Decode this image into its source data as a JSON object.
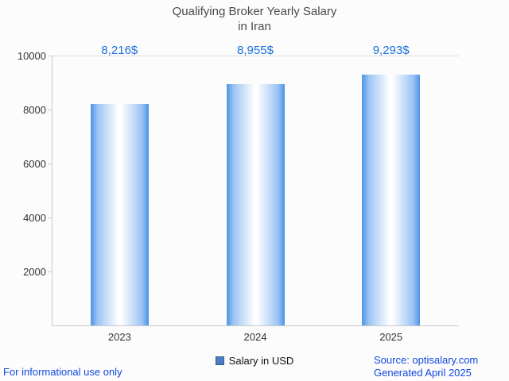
{
  "title_line1": "Qualifying Broker Yearly Salary",
  "title_line2": "in Iran",
  "legend": {
    "label": "Salary in USD"
  },
  "footer": {
    "disclaimer": "For informational use only",
    "source": "Source: optisalary.com",
    "generated": "Generated April 2025"
  },
  "colors": {
    "value_label_blue": "#1a6fdf",
    "footer_blue": "#1148e0",
    "bar_edge_blue": "#4e93e6",
    "bar_center": "#ffffff",
    "legend_swatch": "#4d7ec4",
    "axis_gray": "#c9c9c9",
    "title_gray": "#4a4a4a",
    "background": "#fcfcfc"
  },
  "chart_data": {
    "type": "bar",
    "title": "Qualifying Broker Yearly Salary in Iran",
    "categories": [
      "2023",
      "2024",
      "2025"
    ],
    "values": [
      8216,
      8955,
      9293
    ],
    "value_labels": [
      "8,216$",
      "8,955$",
      "9,293$"
    ],
    "series": [
      {
        "name": "Salary in USD",
        "values": [
          8216,
          8955,
          9293
        ]
      }
    ],
    "xlabel": "",
    "ylabel": "",
    "ylim": [
      0,
      10000
    ],
    "yticks": [
      2000,
      4000,
      6000,
      8000,
      10000
    ],
    "grid": false,
    "legend_entries": [
      "Salary in USD"
    ],
    "legend_position": "bottom"
  }
}
